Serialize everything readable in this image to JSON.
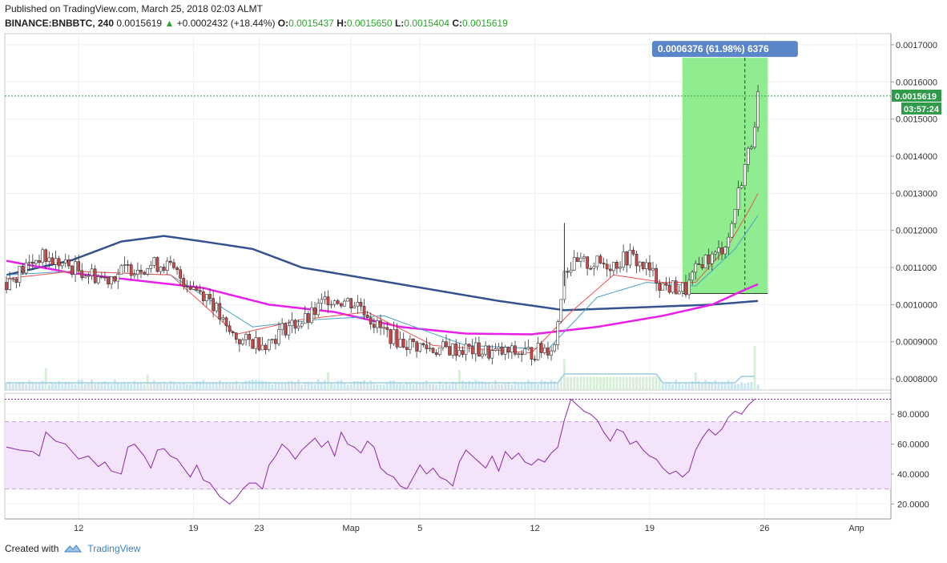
{
  "header": {
    "published": "Published on TradingView.com, March 25, 2018 02:03 ALMT",
    "symbol": "BINANCE:BNBBTC, 240",
    "last": "0.0015619",
    "change_arrow": "▲",
    "change": "+0.0002432 (+18.44%)",
    "o_label": "O:",
    "o": "0.0015437",
    "h_label": "H:",
    "h": "0.0015650",
    "l_label": "L:",
    "l": "0.0015404",
    "c_label": "C:",
    "c": "0.0015619"
  },
  "footer": {
    "created_with": "Created with",
    "brand": "TradingView",
    "logo_icon": "tradingview-cloud-icon"
  },
  "colors": {
    "up": "#ffffff",
    "down": "#d64545",
    "ema_fast": "#ef5350",
    "ema_slow": "#4aa0c9",
    "ma200": "#e91ee9",
    "ma_long": "#35528f",
    "range_fill": "#7bea7b",
    "range_label": "#5a86c9",
    "rsi_line": "#8e24aa",
    "rsi_band": "#f3e4fb",
    "price_tag": "#2e9a4a"
  },
  "chart_data": [
    {
      "type": "candlestick",
      "title": "",
      "y_ticks": [
        "0.0017000",
        "0.0016000",
        "0.0015000",
        "0.0014000",
        "0.0013000",
        "0.0012000",
        "0.0011000",
        "0.0010000",
        "0.0009000",
        "0.0008000"
      ],
      "ylim": [
        0.00077,
        0.00173
      ],
      "x_ticks": [
        {
          "label": "12",
          "bar": 22
        },
        {
          "label": "19",
          "bar": 57
        },
        {
          "label": "23",
          "bar": 77
        },
        {
          "label": "Мар",
          "bar": 105
        },
        {
          "label": "5",
          "bar": 126
        },
        {
          "label": "12",
          "bar": 161
        },
        {
          "label": "19",
          "bar": 196
        },
        {
          "label": "26",
          "bar": 231
        },
        {
          "label": "Апр",
          "bar": 259
        }
      ],
      "bars_total": 270,
      "last_price_label": "0.0015619",
      "countdown": "03:57:24",
      "measure": {
        "label": "0.0006376 (61.98%) 6376",
        "from_bar": 206,
        "to_bar": 232,
        "low": 0.00103,
        "high": 0.001665
      },
      "candles_anchor_path": [
        [
          0,
          0.00106
        ],
        [
          10,
          0.00113
        ],
        [
          20,
          0.0011
        ],
        [
          30,
          0.00107
        ],
        [
          38,
          0.0011
        ],
        [
          48,
          0.00111
        ],
        [
          55,
          0.00106
        ],
        [
          62,
          0.00102
        ],
        [
          67,
          0.00093
        ],
        [
          72,
          0.0009
        ],
        [
          80,
          0.0009
        ],
        [
          85,
          0.00094
        ],
        [
          92,
          0.00096
        ],
        [
          98,
          0.00102
        ],
        [
          103,
          0.00101
        ],
        [
          108,
          0.001
        ],
        [
          113,
          0.00094
        ],
        [
          120,
          0.0009
        ],
        [
          130,
          0.00088
        ],
        [
          140,
          0.00088
        ],
        [
          148,
          0.00087
        ],
        [
          160,
          0.00087
        ],
        [
          167,
          0.00089
        ],
        [
          170,
          0.0011
        ],
        [
          176,
          0.00111
        ],
        [
          185,
          0.00111
        ],
        [
          190,
          0.00113
        ],
        [
          196,
          0.00109
        ],
        [
          200,
          0.00105
        ],
        [
          207,
          0.00104
        ],
        [
          212,
          0.00112
        ],
        [
          216,
          0.00113
        ],
        [
          220,
          0.00118
        ],
        [
          224,
          0.00134
        ],
        [
          227,
          0.00144
        ],
        [
          229,
          0.00156
        ]
      ],
      "ema_fast_path": [
        [
          0,
          0.00107
        ],
        [
          20,
          0.00109
        ],
        [
          50,
          0.00108
        ],
        [
          70,
          0.00092
        ],
        [
          90,
          0.00096
        ],
        [
          110,
          0.00098
        ],
        [
          130,
          0.00089
        ],
        [
          160,
          0.00087
        ],
        [
          172,
          0.00098
        ],
        [
          185,
          0.00108
        ],
        [
          200,
          0.00106
        ],
        [
          210,
          0.00106
        ],
        [
          220,
          0.00116
        ],
        [
          226,
          0.00125
        ],
        [
          229,
          0.0013
        ]
      ],
      "ema_slow_path": [
        [
          0,
          0.00108
        ],
        [
          20,
          0.00109
        ],
        [
          50,
          0.00108
        ],
        [
          75,
          0.00094
        ],
        [
          95,
          0.00096
        ],
        [
          115,
          0.00097
        ],
        [
          140,
          0.00089
        ],
        [
          165,
          0.00088
        ],
        [
          180,
          0.00102
        ],
        [
          195,
          0.00106
        ],
        [
          210,
          0.00105
        ],
        [
          222,
          0.00115
        ],
        [
          229,
          0.00124
        ]
      ],
      "ma200_path": [
        [
          0,
          0.001118
        ],
        [
          20,
          0.001085
        ],
        [
          40,
          0.001065
        ],
        [
          60,
          0.001045
        ],
        [
          80,
          0.001
        ],
        [
          100,
          0.00098
        ],
        [
          120,
          0.00094
        ],
        [
          140,
          0.000922
        ],
        [
          160,
          0.00092
        ],
        [
          180,
          0.00094
        ],
        [
          200,
          0.00097
        ],
        [
          215,
          0.001
        ],
        [
          225,
          0.00104
        ],
        [
          229,
          0.001055
        ]
      ],
      "ma_long_path": [
        [
          0,
          0.00108
        ],
        [
          20,
          0.00112
        ],
        [
          35,
          0.00117
        ],
        [
          48,
          0.001185
        ],
        [
          60,
          0.00117
        ],
        [
          75,
          0.00115
        ],
        [
          90,
          0.0011
        ],
        [
          110,
          0.00107
        ],
        [
          130,
          0.00104
        ],
        [
          150,
          0.00101
        ],
        [
          170,
          0.000985
        ],
        [
          185,
          0.00099
        ],
        [
          200,
          0.000995
        ],
        [
          215,
          0.001
        ],
        [
          229,
          0.00101
        ]
      ],
      "volume_spikes": [
        {
          "bar": 12,
          "v": 0.5
        },
        {
          "bar": 43,
          "v": 0.35
        },
        {
          "bar": 98,
          "v": 0.4
        },
        {
          "bar": 138,
          "v": 0.45
        },
        {
          "bar": 170,
          "v": 0.7
        },
        {
          "bar": 210,
          "v": 0.4
        },
        {
          "bar": 228,
          "v": 1.0
        }
      ]
    },
    {
      "type": "line",
      "title": "",
      "series": [
        {
          "name": "",
          "values_path": [
            [
              0,
              58
            ],
            [
              4,
              56
            ],
            [
              8,
              55
            ],
            [
              10,
              52
            ],
            [
              12,
              68
            ],
            [
              15,
              62
            ],
            [
              18,
              60
            ],
            [
              20,
              55
            ],
            [
              22,
              50
            ],
            [
              25,
              52
            ],
            [
              28,
              45
            ],
            [
              30,
              48
            ],
            [
              32,
              42
            ],
            [
              35,
              40
            ],
            [
              37,
              58
            ],
            [
              39,
              60
            ],
            [
              42,
              52
            ],
            [
              44,
              44
            ],
            [
              46,
              56
            ],
            [
              48,
              57
            ],
            [
              50,
              52
            ],
            [
              52,
              50
            ],
            [
              54,
              44
            ],
            [
              56,
              38
            ],
            [
              58,
              46
            ],
            [
              60,
              36
            ],
            [
              62,
              34
            ],
            [
              65,
              25
            ],
            [
              68,
              20
            ],
            [
              70,
              24
            ],
            [
              72,
              30
            ],
            [
              74,
              34
            ],
            [
              76,
              34
            ],
            [
              78,
              30
            ],
            [
              80,
              46
            ],
            [
              82,
              52
            ],
            [
              84,
              60
            ],
            [
              86,
              56
            ],
            [
              88,
              50
            ],
            [
              90,
              56
            ],
            [
              92,
              60
            ],
            [
              94,
              64
            ],
            [
              96,
              58
            ],
            [
              98,
              62
            ],
            [
              100,
              52
            ],
            [
              102,
              68
            ],
            [
              104,
              60
            ],
            [
              106,
              58
            ],
            [
              108,
              54
            ],
            [
              110,
              62
            ],
            [
              112,
              58
            ],
            [
              114,
              44
            ],
            [
              116,
              40
            ],
            [
              118,
              38
            ],
            [
              120,
              32
            ],
            [
              122,
              30
            ],
            [
              124,
              38
            ],
            [
              126,
              46
            ],
            [
              128,
              40
            ],
            [
              130,
              44
            ],
            [
              132,
              38
            ],
            [
              134,
              36
            ],
            [
              136,
              32
            ],
            [
              138,
              48
            ],
            [
              140,
              56
            ],
            [
              142,
              52
            ],
            [
              144,
              48
            ],
            [
              146,
              44
            ],
            [
              148,
              52
            ],
            [
              150,
              42
            ],
            [
              152,
              55
            ],
            [
              154,
              50
            ],
            [
              156,
              54
            ],
            [
              158,
              48
            ],
            [
              160,
              46
            ],
            [
              162,
              50
            ],
            [
              164,
              48
            ],
            [
              166,
              54
            ],
            [
              168,
              58
            ],
            [
              170,
              76
            ],
            [
              172,
              90
            ],
            [
              174,
              86
            ],
            [
              176,
              82
            ],
            [
              178,
              80
            ],
            [
              180,
              76
            ],
            [
              182,
              68
            ],
            [
              184,
              62
            ],
            [
              186,
              70
            ],
            [
              188,
              68
            ],
            [
              190,
              60
            ],
            [
              192,
              62
            ],
            [
              194,
              56
            ],
            [
              196,
              52
            ],
            [
              198,
              50
            ],
            [
              200,
              44
            ],
            [
              202,
              40
            ],
            [
              204,
              42
            ],
            [
              206,
              38
            ],
            [
              208,
              42
            ],
            [
              210,
              56
            ],
            [
              212,
              64
            ],
            [
              214,
              70
            ],
            [
              216,
              66
            ],
            [
              218,
              70
            ],
            [
              220,
              78
            ],
            [
              222,
              82
            ],
            [
              224,
              80
            ],
            [
              226,
              86
            ],
            [
              228,
              90
            ]
          ]
        }
      ],
      "y_ticks": [
        "80.0000",
        "60.0000",
        "40.0000",
        "20.0000"
      ],
      "ylim": [
        10,
        94
      ],
      "bands": [
        30,
        75
      ]
    }
  ]
}
